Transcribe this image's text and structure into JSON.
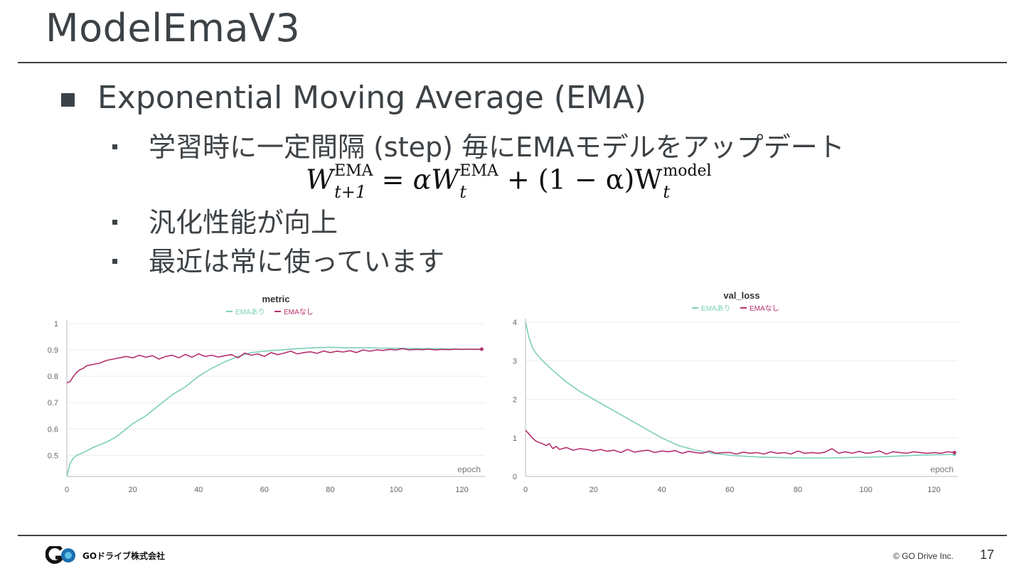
{
  "slide": {
    "title": "ModelEmaV3",
    "bullet": "Exponential Moving Average (EMA)",
    "sub_bullets": [
      "学習時に一定間隔 (step) 毎にEMAモデルをアップデート",
      "汎化性能が向上",
      "最近は常に使っています"
    ],
    "formula": {
      "W": "W",
      "sub1": "t+1",
      "sup1": "EMA",
      "eq": "=",
      "alpha_w": "αW",
      "sub2": "t",
      "sup2": "EMA",
      "mid": "+ (1 − α)W",
      "sub3": "t",
      "sup3": "model"
    },
    "footer": {
      "logo_text": "GOドライブ株式会社",
      "copyright": "© GO Drive Inc.",
      "page": "17"
    }
  },
  "colors": {
    "ema": "#7ccfb8",
    "no_ema": "#b5316e",
    "grid": "#ececec",
    "axis": "#999999",
    "text": "#3d4246"
  },
  "chart_data": [
    {
      "type": "line",
      "title": "metric",
      "xlabel": "epoch",
      "ylabel": "",
      "xlim": [
        0,
        127
      ],
      "ylim": [
        0.42,
        1.0
      ],
      "xticks": [
        0,
        20,
        40,
        60,
        80,
        100,
        120
      ],
      "yticks": [
        0.5,
        0.6,
        0.7,
        0.8,
        0.9,
        1
      ],
      "ytick_labels": [
        "0.5",
        "0.6",
        "0.7",
        "0.8",
        "0.9",
        "1"
      ],
      "legend": "top-center",
      "series": [
        {
          "name": "EMAあり",
          "color": "#7ccfb8",
          "x": [
            0,
            1,
            2,
            3,
            5,
            8,
            12,
            15,
            18,
            20,
            24,
            28,
            32,
            36,
            40,
            44,
            48,
            52,
            56,
            60,
            65,
            70,
            75,
            80,
            85,
            90,
            95,
            100,
            105,
            110,
            115,
            120,
            126
          ],
          "y": [
            0.42,
            0.47,
            0.49,
            0.5,
            0.51,
            0.53,
            0.55,
            0.57,
            0.6,
            0.62,
            0.65,
            0.69,
            0.73,
            0.76,
            0.8,
            0.83,
            0.855,
            0.875,
            0.89,
            0.895,
            0.9,
            0.905,
            0.908,
            0.91,
            0.908,
            0.908,
            0.907,
            0.906,
            0.905,
            0.905,
            0.904,
            0.903,
            0.903
          ]
        },
        {
          "name": "EMAなし",
          "color": "#b5316e",
          "x": [
            0,
            1,
            2,
            3,
            4,
            5,
            6,
            8,
            10,
            12,
            14,
            16,
            18,
            20,
            22,
            24,
            26,
            28,
            30,
            32,
            34,
            36,
            38,
            40,
            42,
            44,
            46,
            48,
            50,
            52,
            54,
            56,
            58,
            60,
            62,
            64,
            66,
            68,
            70,
            72,
            74,
            76,
            78,
            80,
            82,
            84,
            86,
            88,
            90,
            92,
            94,
            96,
            98,
            100,
            102,
            104,
            106,
            108,
            110,
            112,
            114,
            116,
            118,
            120,
            122,
            124,
            126
          ],
          "y": [
            0.775,
            0.78,
            0.8,
            0.815,
            0.825,
            0.83,
            0.84,
            0.845,
            0.85,
            0.86,
            0.865,
            0.87,
            0.875,
            0.87,
            0.88,
            0.872,
            0.878,
            0.865,
            0.875,
            0.88,
            0.87,
            0.883,
            0.872,
            0.885,
            0.875,
            0.88,
            0.873,
            0.878,
            0.882,
            0.87,
            0.888,
            0.88,
            0.885,
            0.875,
            0.89,
            0.882,
            0.888,
            0.895,
            0.885,
            0.89,
            0.893,
            0.887,
            0.896,
            0.89,
            0.895,
            0.892,
            0.897,
            0.89,
            0.9,
            0.895,
            0.9,
            0.898,
            0.902,
            0.9,
            0.905,
            0.9,
            0.902,
            0.901,
            0.903,
            0.9,
            0.902,
            0.901,
            0.903,
            0.902,
            0.903,
            0.902,
            0.903
          ]
        }
      ]
    },
    {
      "type": "line",
      "title": "val_loss",
      "xlabel": "epoch",
      "ylabel": "",
      "xlim": [
        0,
        127
      ],
      "ylim": [
        0,
        4
      ],
      "xticks": [
        0,
        20,
        40,
        60,
        80,
        100,
        120
      ],
      "yticks": [
        0,
        1,
        2,
        3,
        4
      ],
      "ytick_labels": [
        "0",
        "1",
        "2",
        "3",
        "4"
      ],
      "legend": "top-center",
      "series": [
        {
          "name": "EMAあり",
          "color": "#7ccfb8",
          "x": [
            0,
            1,
            2,
            3,
            5,
            8,
            12,
            16,
            20,
            25,
            30,
            35,
            40,
            45,
            50,
            55,
            60,
            65,
            70,
            75,
            80,
            85,
            90,
            95,
            100,
            105,
            110,
            115,
            120,
            126
          ],
          "y": [
            4.0,
            3.6,
            3.35,
            3.2,
            3.0,
            2.75,
            2.45,
            2.2,
            2.0,
            1.75,
            1.5,
            1.25,
            1.0,
            0.8,
            0.68,
            0.6,
            0.55,
            0.52,
            0.5,
            0.49,
            0.48,
            0.48,
            0.48,
            0.49,
            0.5,
            0.51,
            0.53,
            0.55,
            0.56,
            0.57
          ]
        },
        {
          "name": "EMAなし",
          "color": "#b5316e",
          "x": [
            0,
            1,
            2,
            3,
            4,
            5,
            6,
            7,
            8,
            9,
            10,
            12,
            14,
            16,
            18,
            20,
            22,
            24,
            26,
            28,
            30,
            32,
            34,
            36,
            38,
            40,
            42,
            44,
            46,
            48,
            50,
            52,
            54,
            56,
            58,
            60,
            62,
            64,
            66,
            68,
            70,
            72,
            74,
            76,
            78,
            80,
            82,
            84,
            86,
            88,
            90,
            92,
            94,
            96,
            98,
            100,
            102,
            104,
            106,
            108,
            110,
            112,
            114,
            116,
            118,
            120,
            122,
            124,
            126
          ],
          "y": [
            1.2,
            1.1,
            1.0,
            0.92,
            0.88,
            0.85,
            0.8,
            0.85,
            0.72,
            0.78,
            0.7,
            0.75,
            0.68,
            0.72,
            0.7,
            0.66,
            0.7,
            0.65,
            0.68,
            0.62,
            0.7,
            0.63,
            0.66,
            0.68,
            0.62,
            0.66,
            0.64,
            0.67,
            0.6,
            0.65,
            0.62,
            0.6,
            0.66,
            0.6,
            0.62,
            0.62,
            0.58,
            0.63,
            0.6,
            0.62,
            0.58,
            0.64,
            0.6,
            0.62,
            0.58,
            0.66,
            0.6,
            0.62,
            0.6,
            0.63,
            0.72,
            0.6,
            0.64,
            0.6,
            0.65,
            0.6,
            0.62,
            0.66,
            0.58,
            0.64,
            0.62,
            0.6,
            0.64,
            0.62,
            0.6,
            0.62,
            0.6,
            0.64,
            0.62
          ]
        }
      ]
    }
  ]
}
